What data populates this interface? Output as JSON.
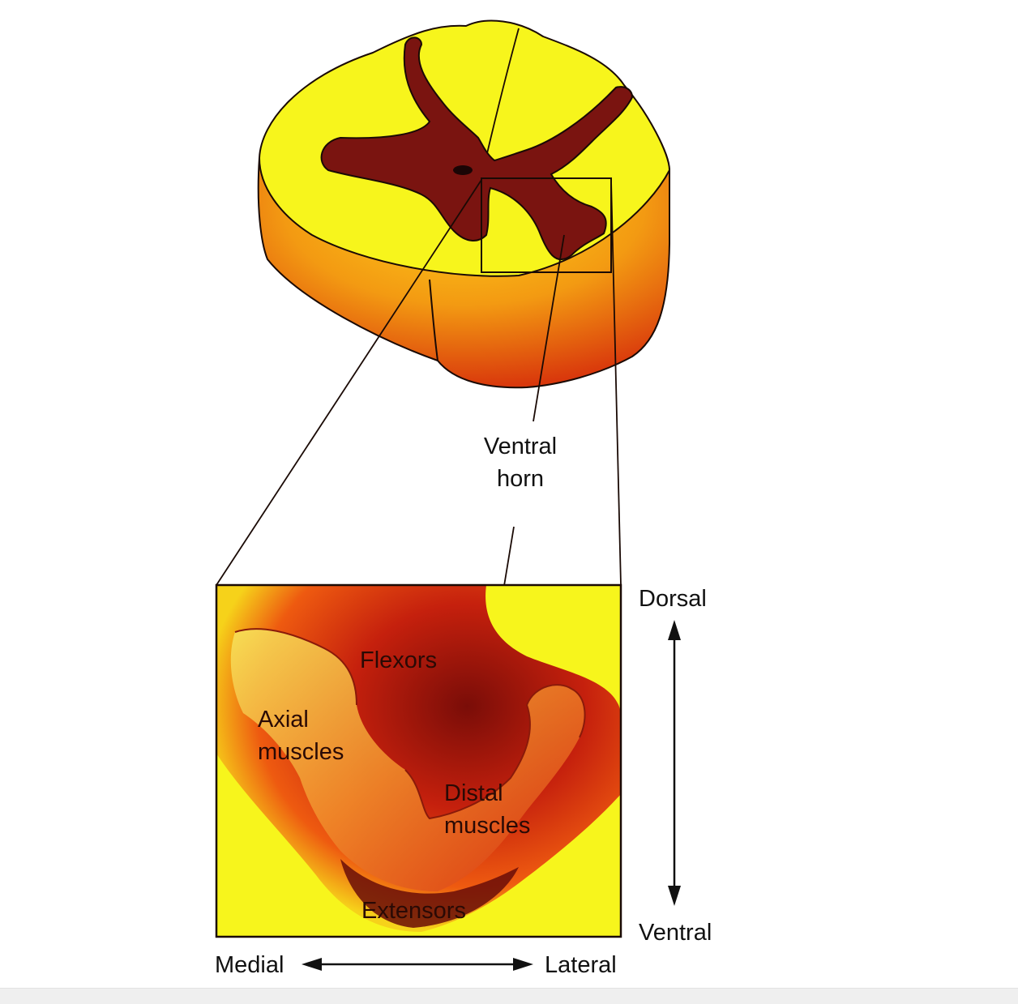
{
  "labels": {
    "ventral_horn_line1": "Ventral",
    "ventral_horn_line2": "horn",
    "flexors": "Flexors",
    "axial_line1": "Axial",
    "axial_line2": "muscles",
    "distal_line1": "Distal",
    "distal_line2": "muscles",
    "extensors": "Extensors"
  },
  "axes": {
    "dorsal": "Dorsal",
    "ventral": "Ventral",
    "medial": "Medial",
    "lateral": "Lateral"
  },
  "colors": {
    "white_matter": "#f7f51c",
    "gray_matter": "#7a1410",
    "outline": "#1a0a05",
    "cut_face": "#e8700c"
  }
}
